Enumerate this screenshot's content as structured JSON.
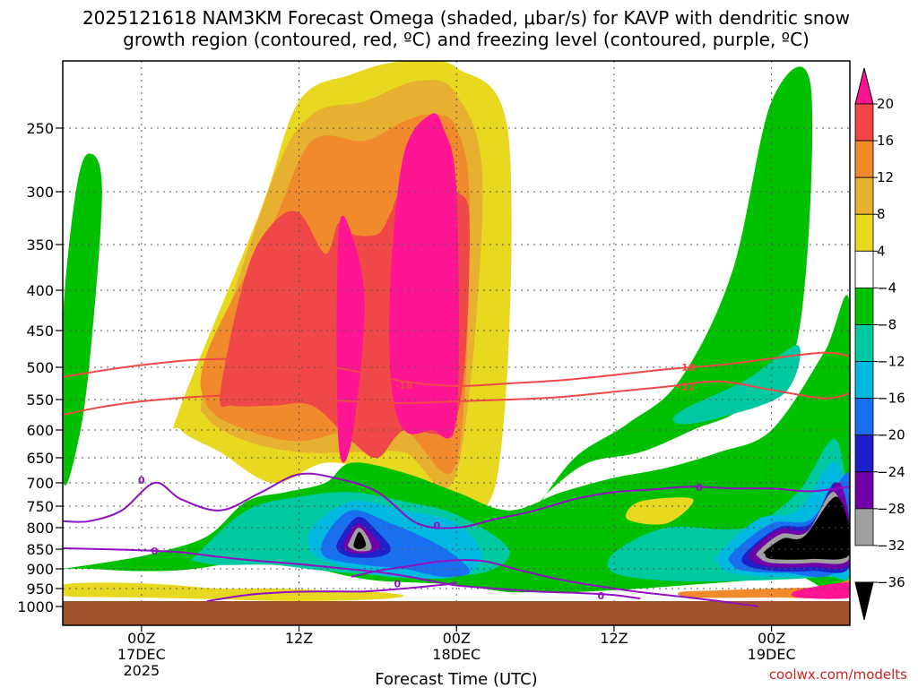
{
  "chart_data": {
    "type": "heatmap",
    "title_line1": "2025121618 NAM3KM Forecast Omega (shaded, μbar/s) for KAVP with dendritic snow",
    "title_line2": "growth region (contoured, red, ºC) and freezing level (contoured, purple, ºC)",
    "xlabel": "Forecast Time (UTC)",
    "credit": "coolwx.com/modelts",
    "x_range_hours": [
      -6,
      54
    ],
    "y_range_hPa": [
      200,
      1000
    ],
    "y_ticks": [
      250,
      300,
      350,
      400,
      450,
      500,
      550,
      600,
      650,
      700,
      750,
      800,
      850,
      900,
      950,
      1000
    ],
    "x_ticks": [
      {
        "hour": 0,
        "line1": "00Z",
        "line2": "17DEC",
        "line3": "2025"
      },
      {
        "hour": 12,
        "line1": "12Z",
        "line2": "",
        "line3": ""
      },
      {
        "hour": 24,
        "line1": "00Z",
        "line2": "18DEC",
        "line3": ""
      },
      {
        "hour": 36,
        "line1": "12Z",
        "line2": "",
        "line3": ""
      },
      {
        "hour": 48,
        "line1": "00Z",
        "line2": "19DEC",
        "line3": ""
      }
    ],
    "colorbar": {
      "labels": [
        "20",
        "16",
        "12",
        "8",
        "4",
        "−4",
        "−8",
        "−12",
        "−16",
        "−20",
        "−24",
        "−28",
        "−32",
        "−36"
      ],
      "colors": [
        "#ff1493",
        "#f04848",
        "#f08a2c",
        "#e8b030",
        "#e8d820",
        "#ffffff",
        "#00c000",
        "#00c8a0",
        "#00b8e0",
        "#1870f0",
        "#2020c8",
        "#7000a8",
        "#a0a0a0",
        "#000000"
      ]
    },
    "contour_labels": {
      "dgz_warm": "-12",
      "dgz_cold": "-18",
      "dgz_fragment": "-1",
      "freezing": "0"
    },
    "dgz_warm_line": {
      "hours": [
        -6,
        -3,
        0,
        4,
        8,
        12,
        16,
        20,
        24,
        28,
        32,
        36,
        40,
        44,
        48,
        52,
        54
      ],
      "hPa": [
        575,
        562,
        553,
        546,
        543,
        548,
        553,
        556,
        553,
        550,
        546,
        538,
        530,
        522,
        535,
        548,
        540
      ]
    },
    "dgz_cold_line": {
      "hours": [
        -6,
        -3,
        0,
        4,
        8,
        10,
        12,
        16,
        20,
        24,
        28,
        32,
        36,
        40,
        44,
        48,
        52,
        54
      ],
      "hPa": [
        515,
        505,
        497,
        490,
        488,
        487,
        493,
        505,
        522,
        529,
        525,
        520,
        512,
        503,
        497,
        488,
        480,
        485
      ]
    },
    "freezing_line": {
      "hours": [
        -6,
        -4,
        -1.5,
        1,
        3,
        6,
        9,
        12,
        15,
        18,
        21,
        24,
        27,
        30,
        33,
        36,
        39,
        42,
        45,
        48,
        51,
        54
      ],
      "hPa": [
        785,
        785,
        760,
        700,
        735,
        760,
        722,
        683,
        692,
        720,
        790,
        800,
        780,
        760,
        735,
        720,
        714,
        708,
        712,
        712,
        718,
        708
      ]
    },
    "freezing_lower_line": {
      "hours": [
        -6,
        -3,
        0,
        3,
        6,
        9,
        12,
        15,
        18,
        20,
        22,
        24,
        27,
        30,
        33,
        36,
        38
      ],
      "hPa": [
        848,
        850,
        853,
        858,
        870,
        880,
        888,
        898,
        908,
        918,
        930,
        942,
        950,
        958,
        962,
        968,
        978
      ]
    },
    "freezing_ground_line": {
      "hours": [
        5,
        8,
        11,
        14,
        17,
        20,
        23,
        24
      ],
      "hPa": [
        985,
        968,
        960,
        958,
        958,
        950,
        940,
        935
      ]
    },
    "freezing_second_line": {
      "hours": [
        16,
        18,
        20,
        23,
        26,
        29,
        32,
        35,
        38,
        41,
        44,
        47
      ],
      "hPa": [
        920,
        905,
        895,
        880,
        880,
        905,
        928,
        945,
        960,
        972,
        985,
        1000
      ]
    },
    "shaded_regions": [
      {
        "level": 4,
        "hours": [
          3,
          9,
          12,
          16,
          20,
          24,
          28,
          27,
          22,
          18,
          14,
          10,
          6,
          3
        ],
        "hPa": [
          560,
          320,
          230,
          210,
          200,
          205,
          260,
          700,
          720,
          680,
          660,
          700,
          640,
          600
        ]
      },
      {
        "level": 8,
        "hours": [
          5,
          10,
          13,
          17,
          21,
          24,
          26,
          24,
          20,
          16,
          12,
          8,
          5
        ],
        "hPa": [
          520,
          290,
          240,
          230,
          215,
          225,
          300,
          680,
          640,
          640,
          640,
          620,
          580
        ]
      },
      {
        "level": 12,
        "hours": [
          5,
          10,
          13,
          17,
          20,
          22,
          24,
          25,
          24,
          20,
          16,
          12,
          8,
          5
        ],
        "hPa": [
          480,
          330,
          260,
          260,
          245,
          240,
          250,
          320,
          660,
          600,
          600,
          620,
          600,
          560
        ]
      },
      {
        "level": 16,
        "hours": [
          6,
          8,
          10,
          12,
          14,
          15,
          16,
          18,
          19,
          20,
          24,
          25,
          24,
          20,
          18,
          16,
          13,
          10,
          7
        ],
        "hPa": [
          540,
          380,
          330,
          320,
          360,
          330,
          340,
          340,
          320,
          300,
          300,
          340,
          580,
          600,
          650,
          620,
          560,
          560,
          560
        ]
      },
      {
        "level": 20,
        "hours": [
          15,
          16,
          17,
          16,
          15
        ],
        "hPa": [
          340,
          340,
          420,
          620,
          620
        ]
      },
      {
        "level": 20,
        "hours": [
          19,
          20,
          22,
          23,
          24,
          24,
          22,
          20,
          19
        ],
        "hPa": [
          380,
          270,
          240,
          250,
          300,
          580,
          600,
          600,
          520
        ]
      },
      {
        "level": -8,
        "hours": [
          -6,
          -5,
          -4,
          -3,
          -4,
          -5,
          -6
        ],
        "hPa": [
          440,
          300,
          270,
          300,
          500,
          640,
          690
        ]
      },
      {
        "level": -8,
        "hours": [
          -6,
          -2,
          1,
          5,
          8,
          11,
          14,
          16,
          20,
          24,
          28,
          32,
          36,
          40,
          44,
          48,
          52,
          54,
          54,
          50,
          46,
          42,
          38,
          33,
          30,
          28,
          26,
          24,
          21,
          18,
          16,
          14,
          12,
          10,
          8,
          6,
          4,
          2,
          -1,
          -4,
          -6
        ],
        "hPa": [
          900,
          880,
          860,
          820,
          740,
          720,
          700,
          660,
          680,
          720,
          760,
          720,
          690,
          670,
          640,
          600,
          480,
          420,
          910,
          920,
          930,
          940,
          950,
          960,
          960,
          960,
          950,
          940,
          935,
          930,
          920,
          905,
          890,
          880,
          880,
          890,
          900,
          905,
          905,
          900,
          900
        ]
      },
      {
        "level": -8,
        "hours": [
          30,
          33,
          37,
          41,
          45,
          48,
          51,
          50,
          46,
          42,
          38,
          34,
          31
        ],
        "hPa": [
          760,
          650,
          590,
          520,
          380,
          230,
          220,
          460,
          560,
          600,
          640,
          660,
          720
        ]
      },
      {
        "level": -12,
        "hours": [
          4,
          8,
          12,
          16,
          20,
          24,
          28,
          26,
          20,
          14,
          10,
          6,
          4
        ],
        "hPa": [
          870,
          760,
          730,
          720,
          740,
          770,
          850,
          910,
          920,
          905,
          890,
          890,
          880
        ]
      },
      {
        "level": -12,
        "hours": [
          36,
          40,
          46,
          50,
          53,
          54,
          52,
          46,
          40,
          36
        ],
        "hPa": [
          860,
          800,
          800,
          720,
          620,
          900,
          920,
          930,
          930,
          910
        ]
      },
      {
        "level": -12,
        "hours": [
          41,
          46,
          50,
          49,
          44,
          41
        ],
        "hPa": [
          570,
          520,
          470,
          540,
          580,
          590
        ]
      },
      {
        "level": -16,
        "hours": [
          13,
          16,
          20,
          24,
          26,
          24,
          19,
          15,
          13
        ],
        "hPa": [
          800,
          740,
          760,
          790,
          870,
          920,
          920,
          890,
          860
        ]
      },
      {
        "level": -16,
        "hours": [
          44,
          47,
          50,
          53,
          54,
          52,
          48,
          45,
          44
        ],
        "hPa": [
          860,
          780,
          760,
          660,
          900,
          915,
          920,
          910,
          890
        ]
      },
      {
        "level": -20,
        "hours": [
          14,
          16,
          19,
          22,
          24,
          25,
          23,
          20,
          17,
          14
        ],
        "hPa": [
          820,
          760,
          790,
          830,
          870,
          910,
          920,
          900,
          890,
          870
        ]
      },
      {
        "level": -20,
        "hours": [
          45,
          48,
          51,
          54,
          53,
          49,
          46,
          45
        ],
        "hPa": [
          860,
          790,
          780,
          680,
          900,
          910,
          905,
          890
        ]
      },
      {
        "level": -24,
        "hours": [
          15,
          16.5,
          18,
          19,
          18,
          16,
          15
        ],
        "hPa": [
          830,
          775,
          810,
          850,
          870,
          870,
          855
        ]
      },
      {
        "level": -24,
        "hours": [
          46,
          48.5,
          51,
          53,
          54,
          51,
          48,
          46
        ],
        "hPa": [
          860,
          800,
          790,
          700,
          890,
          905,
          905,
          890
        ]
      },
      {
        "level": -28,
        "hours": [
          15.5,
          16.5,
          17.6,
          18.2,
          17.2,
          16,
          15.5
        ],
        "hPa": [
          830,
          790,
          815,
          845,
          860,
          860,
          850
        ]
      },
      {
        "level": -28,
        "hours": [
          46.5,
          48.5,
          51,
          53.2,
          54,
          51,
          48,
          46.5
        ],
        "hPa": [
          855,
          805,
          800,
          700,
          880,
          895,
          895,
          880
        ]
      },
      {
        "level": -32,
        "hours": [
          15.8,
          16.5,
          17.2,
          17.5,
          16.5,
          15.8
        ],
        "hPa": [
          835,
          800,
          820,
          850,
          855,
          845
        ]
      },
      {
        "level": -32,
        "hours": [
          47,
          48.7,
          50.7,
          52.8,
          54,
          51,
          48,
          47
        ],
        "hPa": [
          855,
          815,
          810,
          720,
          870,
          885,
          885,
          870
        ]
      },
      {
        "level": -36,
        "hours": [
          16.2,
          16.6,
          17.1,
          16.6,
          16.2
        ],
        "hPa": [
          835,
          810,
          840,
          850,
          845
        ]
      },
      {
        "level": -36,
        "hours": [
          47.5,
          48.9,
          50.5,
          53,
          54,
          51,
          48,
          47.5
        ],
        "hPa": [
          855,
          825,
          820,
          730,
          860,
          875,
          875,
          862
        ]
      },
      {
        "level": 4,
        "hours": [
          -6,
          -2,
          2,
          6,
          10,
          14,
          18,
          20,
          18,
          12,
          6,
          0,
          -6
        ],
        "hPa": [
          940,
          935,
          940,
          950,
          950,
          955,
          960,
          970,
          980,
          985,
          980,
          975,
          970
        ]
      },
      {
        "level": 12,
        "hours": [
          41,
          44,
          48,
          52,
          54,
          54,
          48,
          42
        ],
        "hPa": [
          960,
          955,
          950,
          945,
          930,
          975,
          975,
          975
        ]
      },
      {
        "level": 20,
        "hours": [
          50,
          54,
          54,
          50
        ],
        "hPa": [
          955,
          935,
          975,
          975
        ]
      },
      {
        "level": 4,
        "hours": [
          38,
          42,
          40,
          37
        ],
        "hPa": [
          740,
          735,
          790,
          780
        ]
      }
    ]
  }
}
